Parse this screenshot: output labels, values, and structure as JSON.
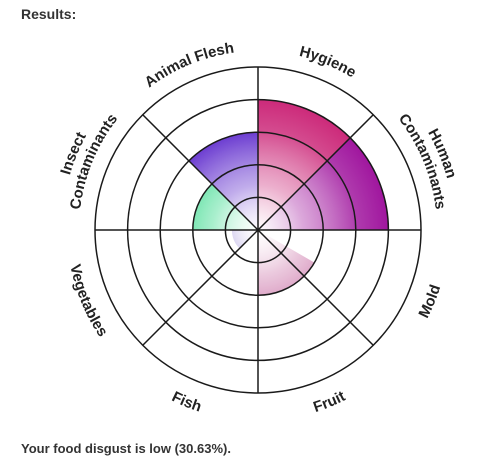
{
  "heading": "Results:",
  "summary": "Your food disgust is low (30.63%).",
  "chart_data": {
    "type": "polar_area",
    "rlim": [
      0,
      5
    ],
    "grid": true,
    "categories": [
      {
        "lines": [
          "Hygiene"
        ],
        "value": 4,
        "color": "#cc2a7a"
      },
      {
        "lines": [
          "Human",
          "Contaminants"
        ],
        "value": 4,
        "color": "#a0169e"
      },
      {
        "lines": [
          "Mold"
        ],
        "value": 0,
        "color": "#c43a8a"
      },
      {
        "lines": [
          "Fruit"
        ],
        "value": 0,
        "color": "#c43a8a"
      },
      {
        "lines": [
          "Fish"
        ],
        "value": 0,
        "color": "#c43a8a"
      },
      {
        "lines": [
          "Vegetables"
        ],
        "value": 0,
        "color": "#c43a8a"
      },
      {
        "lines": [
          "Insect",
          "Contaminants"
        ],
        "value": 2,
        "color": "#5be0a0"
      },
      {
        "lines": [
          "Animal Flesh"
        ],
        "value": 3,
        "color": "#6a3ad0"
      }
    ],
    "extra_wedges": [
      {
        "start_deg": 120,
        "end_deg": 180,
        "value": 2,
        "color": "#d080b0"
      },
      {
        "start_deg": 225,
        "end_deg": 270,
        "value": 0.8,
        "color": "#9a8ad8"
      }
    ]
  }
}
